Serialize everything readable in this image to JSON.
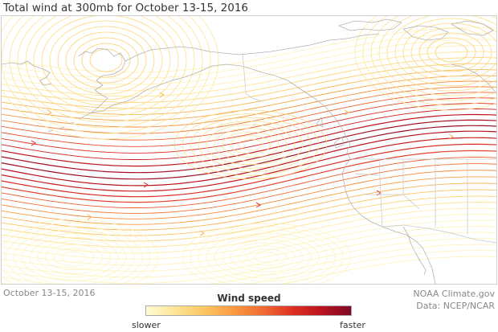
{
  "title": "Total wind at 300mb for October 13-15, 2016",
  "date_caption": "October 13-15, 2016",
  "credit": {
    "line1": "NOAA Climate.gov",
    "line2": "Data: NCEP/NCAR"
  },
  "legend": {
    "title": "Wind speed",
    "low_label": "slower",
    "high_label": "faster",
    "colors": [
      "#fffbd6",
      "#fde594",
      "#fcc560",
      "#f9993f",
      "#f06a32",
      "#dd3022",
      "#b9121f",
      "#7d0a24"
    ]
  }
}
